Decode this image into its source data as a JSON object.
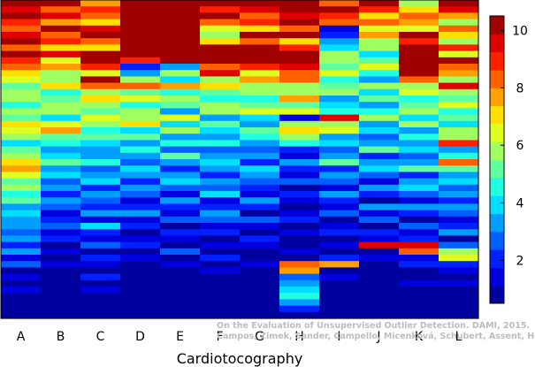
{
  "chart_data": {
    "type": "heatmap",
    "xlabel": "Cardiotocography",
    "categories": [
      "A",
      "B",
      "C",
      "D",
      "E",
      "F",
      "G",
      "H",
      "I",
      "J",
      "K",
      "L"
    ],
    "colorbar": {
      "min": 0.5,
      "max": 10.5,
      "ticks": [
        "2",
        "4",
        "6",
        "8",
        "10"
      ],
      "colormap": "jet",
      "steps": 16
    },
    "columns": [
      [
        10,
        9.5,
        10,
        9,
        8,
        9.5,
        10,
        8.5,
        10,
        9,
        8,
        7,
        6.5,
        5,
        6,
        5.5,
        4.5,
        6,
        5,
        7,
        6.5,
        5.5,
        4,
        5,
        6,
        7,
        7.5,
        6.5,
        5,
        6,
        4.5,
        5,
        3.5,
        4,
        3,
        3.5,
        2.5,
        3,
        2,
        3,
        1.5,
        2.5,
        1,
        1.5,
        1,
        1.2,
        1,
        1,
        1,
        1
      ],
      [
        10,
        8.5,
        9.5,
        7.5,
        10,
        8,
        9,
        7,
        9.5,
        6.5,
        7.5,
        5.5,
        6,
        7,
        4.5,
        5,
        6,
        5.5,
        4,
        6.5,
        7.5,
        5,
        4.5,
        3.5,
        4,
        5,
        3,
        4,
        2.5,
        3.5,
        2,
        3,
        2.5,
        1.5,
        2,
        2.5,
        1.2,
        1.8,
        1,
        1.5,
        1,
        1.2,
        1,
        1,
        1,
        1,
        1,
        1,
        1,
        1
      ],
      [
        7.5,
        9,
        8,
        7,
        9.5,
        10,
        8.5,
        7,
        10,
        10,
        9,
        6.5,
        10,
        8,
        5.5,
        7,
        6,
        5,
        6.5,
        5.5,
        4.5,
        5,
        4,
        3.5,
        3,
        4.5,
        2.5,
        3,
        4,
        2,
        3.5,
        2.5,
        2,
        3,
        1.5,
        4,
        2,
        1.5,
        2.5,
        1,
        2,
        1.5,
        1,
        2,
        1,
        1.5,
        1,
        1,
        1,
        1
      ],
      [
        10,
        10,
        10,
        10,
        10,
        10,
        10,
        10,
        10,
        9,
        2,
        3,
        6,
        8,
        5,
        6.5,
        4.5,
        5.5,
        6,
        7,
        4,
        5,
        3.5,
        4.5,
        3,
        2.5,
        4,
        3,
        2,
        3.5,
        2.5,
        1.5,
        2,
        3,
        1.5,
        2,
        1,
        1.5,
        2,
        1,
        1.5,
        1,
        1,
        1,
        1,
        1,
        1,
        1,
        1,
        1
      ],
      [
        10,
        10,
        10,
        10,
        10,
        10,
        10,
        10,
        10,
        10,
        3,
        5.5,
        4,
        7.5,
        4.5,
        6,
        5,
        3.5,
        6.5,
        4,
        5.5,
        3,
        4.5,
        2.5,
        5,
        3.5,
        2,
        3,
        4,
        2.5,
        1.5,
        3,
        2,
        1.5,
        2.5,
        1,
        2,
        1.5,
        1,
        2.5,
        1,
        1.5,
        1,
        1,
        1,
        1,
        1,
        1,
        1,
        1
      ],
      [
        10,
        9,
        10,
        8.5,
        6.5,
        5.5,
        7,
        10,
        10,
        10,
        8,
        9.5,
        6,
        7,
        5,
        4.5,
        6,
        5.5,
        3.5,
        5,
        4,
        3,
        4.5,
        2.5,
        3.5,
        4,
        3,
        2,
        3.5,
        2.5,
        4,
        1.5,
        2,
        3,
        2.5,
        1.5,
        2,
        1,
        1.5,
        1,
        2,
        1,
        1.5,
        1,
        1,
        1,
        1,
        1,
        1,
        1
      ],
      [
        10,
        9.5,
        8,
        9,
        7,
        10,
        8.5,
        10,
        10,
        10,
        9,
        6.5,
        7.5,
        5.5,
        6,
        4.5,
        5,
        6.5,
        4,
        3.5,
        5,
        4.5,
        3,
        2.5,
        3.5,
        2,
        4,
        3,
        2.5,
        2,
        1.5,
        3,
        2,
        1,
        2.5,
        1.5,
        1,
        2,
        1.5,
        1,
        1,
        1.5,
        1,
        1,
        1,
        1,
        1,
        1,
        1,
        1
      ],
      [
        10,
        10,
        9.5,
        10,
        8.5,
        10,
        7,
        9,
        10,
        10,
        9.5,
        8,
        8.5,
        5.5,
        6,
        7.5,
        5,
        6.5,
        1.5,
        6,
        7,
        5.5,
        4.5,
        2,
        1.5,
        3,
        2,
        1.5,
        2.5,
        1,
        2,
        1.5,
        1,
        1.5,
        2,
        1,
        1.5,
        1,
        1,
        1.5,
        1,
        8.5,
        7.5,
        2.5,
        3.5,
        4,
        4.5,
        3,
        2,
        1
      ],
      [
        8.5,
        10,
        9,
        8,
        1.5,
        2,
        3,
        4,
        5.5,
        6,
        5,
        6.5,
        4.5,
        5,
        6,
        3.5,
        4,
        4.5,
        9.5,
        5.5,
        6.5,
        3,
        4,
        2.5,
        3,
        5,
        2,
        3.5,
        2.5,
        1.5,
        3,
        2,
        1.5,
        2.5,
        1,
        1.5,
        2,
        1,
        1.5,
        1,
        2,
        7.5,
        1,
        1.5,
        1,
        1,
        1,
        1,
        1,
        1
      ],
      [
        10,
        9,
        7,
        8,
        6.5,
        7.5,
        6,
        5.5,
        4,
        5,
        6.5,
        4.5,
        3,
        5.5,
        4,
        5,
        3.5,
        4.5,
        6,
        3,
        4,
        2.5,
        3.5,
        5,
        2,
        3,
        4,
        2.5,
        1.5,
        3.5,
        2,
        1,
        3,
        1.5,
        2.5,
        1,
        2,
        1.5,
        9.5,
        1,
        1.5,
        1,
        1,
        1,
        1,
        1,
        1,
        1,
        1,
        1
      ],
      [
        6,
        7,
        8,
        7.5,
        6.5,
        10,
        9,
        10,
        10,
        10,
        10,
        10,
        8.5,
        5.5,
        6.5,
        4.5,
        5,
        6,
        4,
        5.5,
        3.5,
        4.5,
        3,
        4,
        2.5,
        3.5,
        5,
        2,
        3,
        4,
        2.5,
        1.5,
        3.5,
        2,
        1,
        2.5,
        1.5,
        2,
        9.5,
        8,
        1.5,
        2,
        1,
        1,
        1.5,
        1,
        1,
        1,
        1,
        1
      ],
      [
        10,
        9.5,
        7.5,
        6,
        8.5,
        7,
        5.5,
        9,
        6.5,
        10,
        8,
        7.5,
        6,
        9.5,
        5.5,
        5,
        6.5,
        4.5,
        5,
        4,
        5.5,
        6,
        9,
        3.5,
        4.5,
        8,
        5,
        3,
        4,
        2.5,
        3.5,
        2,
        3,
        2.5,
        1.5,
        2,
        3,
        1,
        2.5,
        5.5,
        6.5,
        2,
        1.5,
        1,
        1.5,
        1,
        1,
        1,
        1,
        1
      ]
    ]
  },
  "watermark": {
    "line1": "On the Evaluation of Unsupervised Outlier Detection. DAMI, 2015.",
    "line2": "Campos, Zimek, Sander, Campello, Micenková, Schubert, Assent, Houle"
  }
}
